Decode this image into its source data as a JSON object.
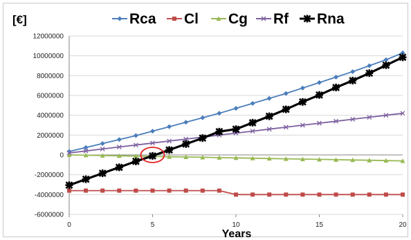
{
  "chart_data": {
    "type": "line",
    "ylabel": "[€]",
    "xlabel": "Years",
    "xlim": [
      0,
      20
    ],
    "ylim": [
      -6000000,
      12000000
    ],
    "xticks": [
      0,
      5,
      10,
      15,
      20
    ],
    "yticks": [
      -6000000,
      -4000000,
      -2000000,
      0,
      2000000,
      4000000,
      6000000,
      8000000,
      10000000,
      12000000
    ],
    "ytick_labels": [
      "-6000000",
      "-4000000",
      "-2000000",
      "0",
      "2000000",
      "4000000",
      "6000000",
      "8000000",
      "10000000",
      "12000000"
    ],
    "grid": "horizontal",
    "legend_position": "top",
    "x": [
      0,
      1,
      2,
      3,
      4,
      5,
      6,
      7,
      8,
      9,
      10,
      11,
      12,
      13,
      14,
      15,
      16,
      17,
      18,
      19,
      20
    ],
    "series": [
      {
        "name": "Rca",
        "color": "#4a7ebb",
        "marker": "diamond",
        "values": [
          350000,
          750000,
          1150000,
          1550000,
          1950000,
          2400000,
          2850000,
          3300000,
          3750000,
          4200000,
          4700000,
          5200000,
          5700000,
          6200000,
          6750000,
          7300000,
          7850000,
          8400000,
          9000000,
          9600000,
          10300000
        ]
      },
      {
        "name": "Cl",
        "color": "#be4b48",
        "marker": "square",
        "values": [
          -3600000,
          -3600000,
          -3600000,
          -3600000,
          -3600000,
          -3600000,
          -3600000,
          -3600000,
          -3600000,
          -3600000,
          -4000000,
          -4000000,
          -4000000,
          -4000000,
          -4000000,
          -4000000,
          -4000000,
          -4000000,
          -4000000,
          -4000000,
          -4000000
        ]
      },
      {
        "name": "Cg",
        "color": "#98b954",
        "marker": "triangle",
        "values": [
          0,
          -30000,
          -60000,
          -90000,
          -120000,
          -150000,
          -180000,
          -210000,
          -240000,
          -270000,
          -300000,
          -330000,
          -360000,
          -390000,
          -420000,
          -450000,
          -480000,
          -510000,
          -540000,
          -570000,
          -600000
        ]
      },
      {
        "name": "Rf",
        "color": "#7d60a0",
        "marker": "x",
        "values": [
          200000,
          400000,
          600000,
          800000,
          1000000,
          1200000,
          1400000,
          1600000,
          1800000,
          2000000,
          2200000,
          2400000,
          2600000,
          2800000,
          3000000,
          3200000,
          3400000,
          3600000,
          3800000,
          4000000,
          4200000
        ]
      },
      {
        "name": "Rna",
        "color": "#000000",
        "marker": "star",
        "values": [
          -3050000,
          -2450000,
          -1850000,
          -1250000,
          -650000,
          -100000,
          500000,
          1100000,
          1700000,
          2350000,
          2600000,
          3250000,
          3900000,
          4600000,
          5350000,
          6050000,
          6800000,
          7500000,
          8250000,
          9050000,
          9850000
        ]
      }
    ],
    "annotations": [
      {
        "type": "circle",
        "x": 5,
        "y": 0,
        "color": "#e02020"
      }
    ]
  }
}
